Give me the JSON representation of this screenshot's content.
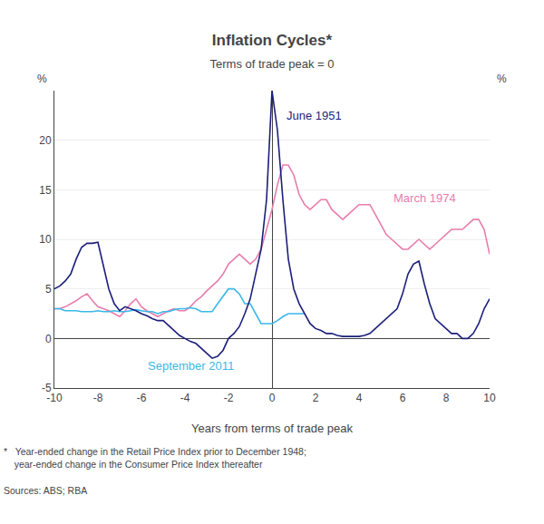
{
  "chart_data": {
    "type": "line",
    "title": "Inflation Cycles*",
    "subtitle": "Terms of trade peak = 0",
    "xlabel": "Years from terms of trade peak",
    "ylabel": "%",
    "y2label": "%",
    "x": [
      -10.0,
      -9.75,
      -9.5,
      -9.25,
      -9.0,
      -8.75,
      -8.5,
      -8.25,
      -8.0,
      -7.75,
      -7.5,
      -7.25,
      -7.0,
      -6.75,
      -6.5,
      -6.25,
      -6.0,
      -5.75,
      -5.5,
      -5.25,
      -5.0,
      -4.75,
      -4.5,
      -4.25,
      -4.0,
      -3.75,
      -3.5,
      -3.25,
      -3.0,
      -2.75,
      -2.5,
      -2.25,
      -2.0,
      -1.75,
      -1.5,
      -1.25,
      -1.0,
      -0.75,
      -0.5,
      -0.25,
      0.0,
      0.25,
      0.5,
      0.75,
      1.0,
      1.25,
      1.5,
      1.75,
      2.0,
      2.25,
      2.5,
      2.75,
      3.0,
      3.25,
      3.5,
      3.75,
      4.0,
      4.25,
      4.5,
      4.75,
      5.0,
      5.25,
      5.5,
      5.75,
      6.0,
      6.25,
      6.5,
      6.75,
      7.0,
      7.25,
      7.5,
      7.75,
      8.0,
      8.25,
      8.5,
      8.75,
      9.0,
      9.25,
      9.5,
      9.75,
      10.0
    ],
    "series": [
      {
        "name": "March 1974",
        "color": "#e87dac",
        "values": [
          3.0,
          3.0,
          3.2,
          3.5,
          3.8,
          4.2,
          4.5,
          3.8,
          3.2,
          3.0,
          2.8,
          2.5,
          2.2,
          2.8,
          3.5,
          4.0,
          3.2,
          2.8,
          2.5,
          2.2,
          2.5,
          2.8,
          3.0,
          2.8,
          2.8,
          3.2,
          3.8,
          4.2,
          4.8,
          5.3,
          5.8,
          6.5,
          7.5,
          8.0,
          8.5,
          8.0,
          7.5,
          8.0,
          9.0,
          11.0,
          13.0,
          15.5,
          17.5,
          17.5,
          16.5,
          14.5,
          13.5,
          13.0,
          13.5,
          14.0,
          14.0,
          13.0,
          12.5,
          12.0,
          12.5,
          13.0,
          13.5,
          13.5,
          13.5,
          12.5,
          11.5,
          10.5,
          10.0,
          9.5,
          9.0,
          9.0,
          9.5,
          10.0,
          9.5,
          9.0,
          9.5,
          10.0,
          10.5,
          11.0,
          11.0,
          11.0,
          11.5,
          12.0,
          12.0,
          11.0,
          8.5
        ]
      },
      {
        "name": "September 2011",
        "color": "#3bb8e8",
        "values": [
          3.0,
          3.0,
          2.8,
          2.8,
          2.8,
          2.7,
          2.7,
          2.7,
          2.8,
          2.7,
          2.7,
          2.8,
          2.7,
          2.7,
          2.8,
          2.9,
          2.8,
          2.7,
          2.7,
          2.5,
          2.7,
          2.7,
          2.9,
          3.0,
          3.0,
          3.1,
          3.0,
          2.7,
          2.7,
          2.7,
          3.5,
          4.2,
          5.0,
          5.0,
          4.5,
          3.5,
          3.5,
          2.5,
          1.5,
          1.5,
          1.5,
          1.8,
          2.2,
          2.5,
          2.5,
          2.5,
          2.5,
          null,
          null,
          null,
          null,
          null,
          null,
          null,
          null,
          null,
          null,
          null,
          null,
          null,
          null,
          null,
          null,
          null,
          null,
          null,
          null,
          null,
          null,
          null,
          null,
          null,
          null,
          null,
          null,
          null,
          null,
          null,
          null,
          null,
          null
        ]
      },
      {
        "name": "June 1951",
        "color": "#1c1f7a",
        "values": [
          5.0,
          5.3,
          5.8,
          6.5,
          8.0,
          9.2,
          9.6,
          9.6,
          9.7,
          7.2,
          5.0,
          3.5,
          2.8,
          3.2,
          3.0,
          2.8,
          2.5,
          2.3,
          2.0,
          1.8,
          1.8,
          1.3,
          0.8,
          0.3,
          0.0,
          -0.3,
          -0.5,
          -1.0,
          -1.5,
          -2.0,
          -1.8,
          -1.2,
          0.0,
          0.5,
          1.2,
          2.5,
          4.0,
          6.5,
          9.0,
          14.0,
          25.0,
          21.0,
          14.0,
          8.0,
          5.0,
          3.5,
          2.5,
          1.5,
          1.0,
          0.8,
          0.5,
          0.5,
          0.3,
          0.2,
          0.2,
          0.2,
          0.2,
          0.3,
          0.5,
          1.0,
          1.5,
          2.0,
          2.5,
          3.0,
          4.5,
          6.5,
          7.5,
          7.8,
          5.5,
          3.5,
          2.0,
          1.5,
          1.0,
          0.5,
          0.5,
          0.0,
          0.0,
          0.5,
          1.5,
          3.0,
          4.0
        ]
      }
    ],
    "xlim": [
      -10,
      10
    ],
    "ylim": [
      -5,
      25
    ],
    "xticks": [
      -10,
      -8,
      -6,
      -4,
      -2,
      0,
      2,
      4,
      6,
      8,
      10
    ],
    "yticks": [
      -5,
      0,
      5,
      10,
      15,
      20
    ],
    "y2lim": [
      -5,
      25
    ],
    "y2ticks": [
      -5,
      0,
      5,
      10,
      15,
      20
    ],
    "grid": true,
    "annotations": [
      {
        "text": "June 1951",
        "x": 0.6,
        "y": 22.5,
        "color": "#1c1f7a"
      },
      {
        "text": "March 1974",
        "x": 5.5,
        "y": 14.2,
        "color": "#e87dac"
      },
      {
        "text": "September 2011",
        "x": -5.8,
        "y": -2.8,
        "color": "#3bb8e8"
      }
    ],
    "notes": [
      "*   Year-ended change in the Retail Price Index prior to December 1948;\n    year-ended change in the Consumer Price Index thereafter",
      "Sources: ABS; RBA"
    ]
  }
}
